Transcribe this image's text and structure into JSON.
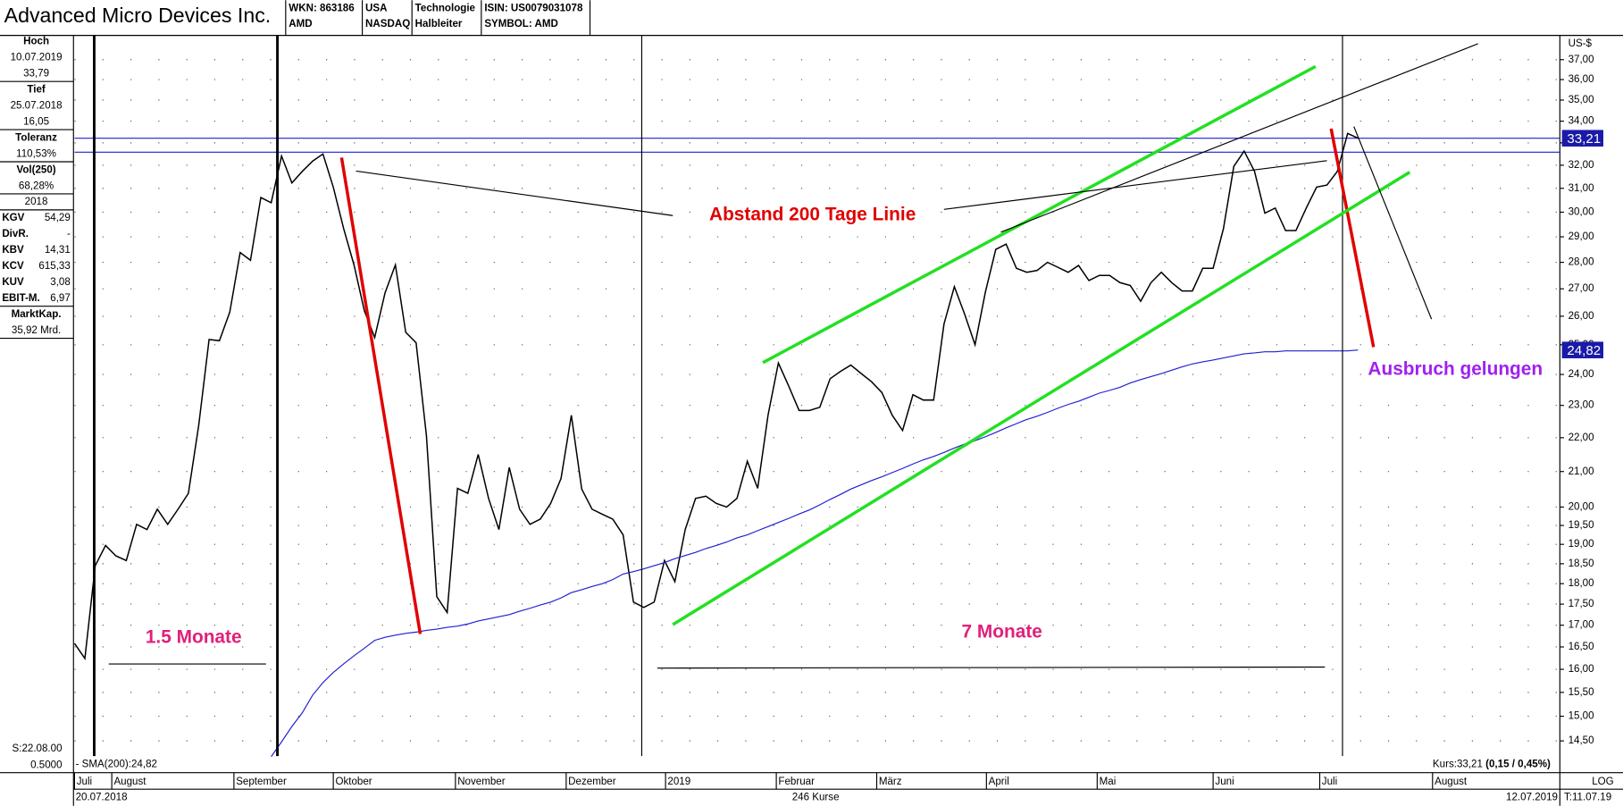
{
  "header": {
    "title": "Advanced Micro Devices Inc.",
    "wkn": "WKN: 863186",
    "ticker": "AMD",
    "country": "USA",
    "exchange": "NASDAQ",
    "sector": "Technologie",
    "industry": "Halbleiter",
    "isin": "ISIN: US0079031078",
    "symbol": "SYMBOL: AMD"
  },
  "info_panel": {
    "rows": [
      [
        "Hoch"
      ],
      [
        "10.07.2019"
      ],
      [
        "33,79"
      ],
      [
        "Tief"
      ],
      [
        "25.07.2018"
      ],
      [
        "16,05"
      ],
      [
        "Toleranz"
      ],
      [
        "110,53%"
      ],
      [
        "Vol(250)"
      ],
      [
        "68,28%"
      ],
      [
        "2018"
      ],
      [
        "KGV",
        "54,29"
      ],
      [
        "DivR.",
        "-"
      ],
      [
        "KBV",
        "14,31"
      ],
      [
        "KCV",
        "615,33"
      ],
      [
        "KUV",
        "3,08"
      ],
      [
        "EBIT-M.",
        "6,97"
      ],
      [
        "MarktKap."
      ],
      [
        "35,92 Mrd."
      ]
    ],
    "footer": [
      "S:22.08.00",
      "0.5000"
    ]
  },
  "chart_data": {
    "type": "line",
    "y_unit": "US-$",
    "log_scale": true,
    "grid": true,
    "xlim": [
      0,
      143.5
    ],
    "xticks": [
      {
        "value": 0,
        "label": "Juli"
      },
      {
        "value": 3.6,
        "label": "August"
      },
      {
        "value": 15.4,
        "label": "September"
      },
      {
        "value": 25,
        "label": "Oktober"
      },
      {
        "value": 36.8,
        "label": "November"
      },
      {
        "value": 47.5,
        "label": "Dezember"
      },
      {
        "value": 57.1,
        "label": "2019"
      },
      {
        "value": 67.8,
        "label": "Februar"
      },
      {
        "value": 77.5,
        "label": "März"
      },
      {
        "value": 88.1,
        "label": "April"
      },
      {
        "value": 98.8,
        "label": "Mai"
      },
      {
        "value": 110,
        "label": "Juni"
      },
      {
        "value": 120.3,
        "label": "Juli"
      },
      {
        "value": 131.2,
        "label": "August"
      }
    ],
    "ylim": [
      13.9,
      38.2
    ],
    "yticks": [
      {
        "value": 14.5,
        "label": "14,50"
      },
      {
        "value": 15,
        "label": "15,00"
      },
      {
        "value": 15.5,
        "label": "15,50"
      },
      {
        "value": 16,
        "label": "16,00"
      },
      {
        "value": 16.5,
        "label": "16,50"
      },
      {
        "value": 17,
        "label": "17,00"
      },
      {
        "value": 17.5,
        "label": "17,50"
      },
      {
        "value": 18,
        "label": "18,00"
      },
      {
        "value": 18.5,
        "label": "18,50"
      },
      {
        "value": 19,
        "label": "19,00"
      },
      {
        "value": 19.5,
        "label": "19,50"
      },
      {
        "value": 20,
        "label": "20,00"
      },
      {
        "value": 21,
        "label": "21,00"
      },
      {
        "value": 22,
        "label": "22,00"
      },
      {
        "value": 23,
        "label": "23,00"
      },
      {
        "value": 24,
        "label": "24,00"
      },
      {
        "value": 25,
        "label": "25,00"
      },
      {
        "value": 26,
        "label": "26,00"
      },
      {
        "value": 27,
        "label": "27,00"
      },
      {
        "value": 28,
        "label": "28,00"
      },
      {
        "value": 29,
        "label": "29,00"
      },
      {
        "value": 30,
        "label": "30,00"
      },
      {
        "value": 31,
        "label": "31,00"
      },
      {
        "value": 32,
        "label": "32,00"
      },
      {
        "value": 33,
        "label": "33,00"
      },
      {
        "value": 34,
        "label": "34,00"
      },
      {
        "value": 35,
        "label": "35,00"
      },
      {
        "value": 36,
        "label": "36,00"
      },
      {
        "value": 37,
        "label": "37,00"
      }
    ],
    "series": [
      {
        "color": "#000000",
        "values": [
          16.58,
          16.24,
          18.45,
          18.97,
          18.7,
          18.58,
          19.53,
          19.39,
          19.94,
          19.53,
          19.94,
          20.38,
          22.38,
          25.18,
          25.14,
          26.15,
          28.38,
          28.08,
          30.61,
          30.39,
          32.41,
          31.23,
          31.73,
          32.18,
          32.5,
          31.05,
          29.33,
          27.9,
          26.2,
          25.25,
          26.85,
          27.9,
          25.43,
          25.07,
          22.06,
          17.68,
          17.3,
          20.52,
          20.38,
          21.5,
          20.24,
          19.39,
          21.12,
          19.94,
          19.53,
          19.67,
          20.1,
          20.8,
          22.69,
          20.5,
          19.94,
          19.8,
          19.67,
          19.25,
          17.55,
          17.42,
          17.55,
          18.58,
          18.05,
          19.39,
          20.24,
          20.3,
          20.1,
          20.0,
          20.24,
          21.3,
          20.52,
          22.69,
          24.38,
          23.62,
          22.84,
          22.84,
          22.94,
          23.86,
          24.1,
          24.31,
          24.03,
          23.76,
          23.41,
          22.69,
          22.22,
          23.34,
          23.17,
          23.17,
          25.72,
          27.08,
          26.07,
          25.0,
          26.88,
          28.5,
          28.71,
          27.77,
          27.62,
          27.69,
          28.0,
          27.81,
          27.62,
          27.88,
          27.31,
          27.5,
          27.5,
          27.23,
          27.12,
          26.54,
          27.23,
          27.62,
          27.23,
          26.92,
          26.92,
          27.77,
          27.77,
          29.33,
          31.95,
          32.63,
          31.73,
          29.96,
          30.17,
          29.25,
          29.25,
          30.17,
          31.05,
          31.14,
          31.73,
          33.43,
          33.21
        ]
      },
      {
        "name": "- SMA(200):24,82",
        "color": "#1f1fd0",
        "values": [
          null,
          null,
          null,
          null,
          null,
          null,
          null,
          null,
          null,
          null,
          null,
          null,
          null,
          null,
          null,
          null,
          null,
          null,
          null,
          14.19,
          14.48,
          14.79,
          15.07,
          15.44,
          15.71,
          15.93,
          16.12,
          16.3,
          16.47,
          16.65,
          16.72,
          16.77,
          16.81,
          16.84,
          16.88,
          16.91,
          16.95,
          16.98,
          17.03,
          17.1,
          17.15,
          17.2,
          17.25,
          17.33,
          17.4,
          17.48,
          17.55,
          17.65,
          17.78,
          17.85,
          17.93,
          18.0,
          18.1,
          18.24,
          18.3,
          18.37,
          18.45,
          18.53,
          18.63,
          18.71,
          18.79,
          18.89,
          18.97,
          19.06,
          19.17,
          19.25,
          19.36,
          19.47,
          19.58,
          19.69,
          19.81,
          19.92,
          20.06,
          20.21,
          20.35,
          20.5,
          20.62,
          20.74,
          20.85,
          20.97,
          21.09,
          21.22,
          21.34,
          21.44,
          21.56,
          21.69,
          21.81,
          21.91,
          22.03,
          22.16,
          22.3,
          22.43,
          22.56,
          22.66,
          22.78,
          22.91,
          23.03,
          23.13,
          23.26,
          23.39,
          23.48,
          23.58,
          23.72,
          23.83,
          23.93,
          24.03,
          24.14,
          24.25,
          24.35,
          24.42,
          24.48,
          24.55,
          24.62,
          24.69,
          24.72,
          24.76,
          24.76,
          24.79,
          24.79,
          24.79,
          24.79,
          24.79,
          24.79,
          24.79,
          24.82
        ]
      }
    ],
    "horizontal_lines": [
      33.21,
      32.58
    ],
    "last_value_labels": [
      {
        "value": 33.21,
        "label": "33,21"
      },
      {
        "value": 24.82,
        "label": "24,82"
      }
    ],
    "annotations": [
      "Abstand 200 Tage Linie",
      "1.5 Monate",
      "7 Monate",
      "Ausbruch gelungen"
    ]
  },
  "footer": {
    "kurs": "Kurs:33,21 ",
    "kurs_change": "(0,15 / 0,45%)",
    "start_date": "20.07.2018",
    "count": "246 Kurse",
    "end_date": "12.07.2019",
    "scale": "LOG",
    "time": "T:11.07.19"
  }
}
